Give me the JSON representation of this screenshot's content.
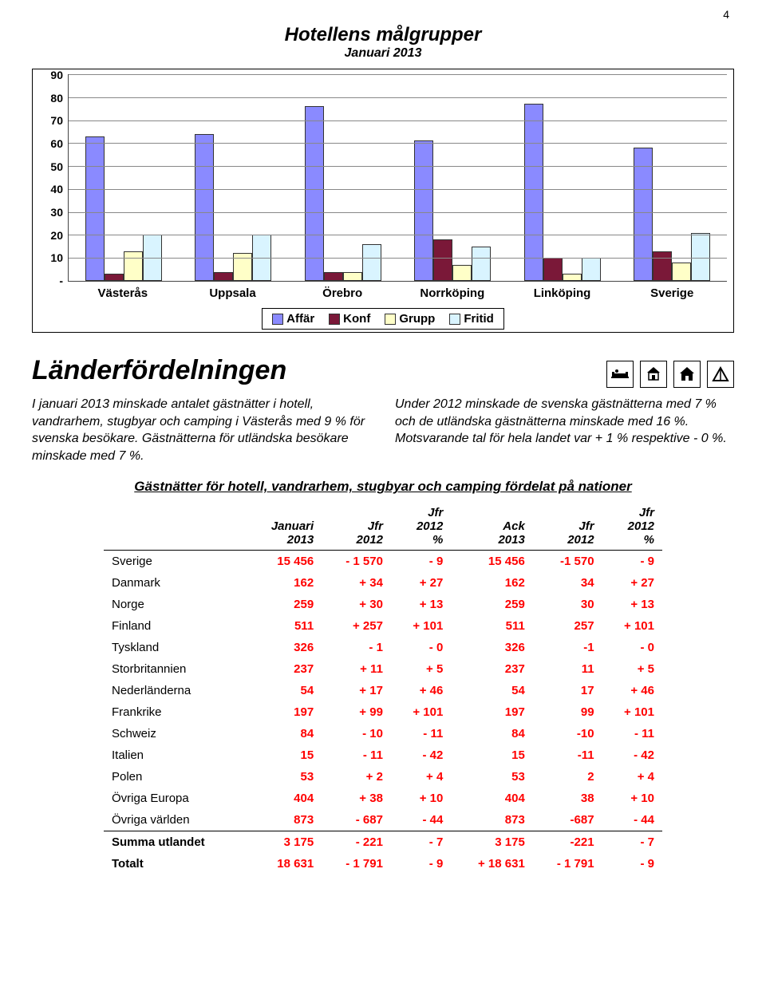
{
  "page_number": "4",
  "chart": {
    "type": "bar",
    "title": "Hotellens målgrupper",
    "subtitle": "Januari 2013",
    "ymax": 90,
    "ystep": 10,
    "ylabels": [
      "90",
      "80",
      "70",
      "60",
      "50",
      "40",
      "30",
      "20",
      "10",
      "-"
    ],
    "categories": [
      "Västerås",
      "Uppsala",
      "Örebro",
      "Norrköping",
      "Linköping",
      "Sverige"
    ],
    "series": [
      {
        "name": "Affär",
        "color": "#8a8aff",
        "values": [
          63,
          64,
          76,
          61,
          77,
          58
        ]
      },
      {
        "name": "Konf",
        "color": "#7a1838",
        "values": [
          3,
          4,
          4,
          18,
          10,
          13
        ]
      },
      {
        "name": "Grupp",
        "color": "#ffffc8",
        "values": [
          13,
          12,
          4,
          7,
          3,
          8
        ]
      },
      {
        "name": "Fritid",
        "color": "#d9f4ff",
        "values": [
          20,
          20,
          16,
          15,
          10,
          21
        ]
      }
    ],
    "grid_color": "#888888",
    "border_color": "#000000",
    "background_color": "#ffffff"
  },
  "section_heading": "Länderfördelningen",
  "icons": [
    "hotel-icon",
    "hostel-icon",
    "cabin-icon",
    "tent-icon"
  ],
  "col_left": "I januari 2013 minskade antalet gästnätter i hotell, vandrarhem, stugbyar och camping i Västerås med 9 % för svenska besökare. Gästnätterna för utländska besökare minskade med 7 %.",
  "col_right": "Under 2012 minskade de svenska gästnätterna med 7 % och de utländska gästnätterna minskade med 16 %. Motsvarande tal för hela landet var + 1 % respektive - 0 %.",
  "subheading": "Gästnätter för hotell, vandrarhem, stugbyar och camping fördelat på nationer",
  "table": {
    "headers": [
      "",
      "Januari\n2013",
      "Jfr\n2012",
      "Jfr\n2012\n%",
      "Ack\n2013",
      "Jfr\n2012",
      "Jfr\n2012\n%"
    ],
    "rows": [
      [
        "Sverige",
        "15 456",
        "- 1 570",
        "- 9",
        "15 456",
        "-1 570",
        "- 9"
      ],
      [
        "Danmark",
        "162",
        "+ 34",
        "+ 27",
        "162",
        "34",
        "+ 27"
      ],
      [
        "Norge",
        "259",
        "+ 30",
        "+ 13",
        "259",
        "30",
        "+ 13"
      ],
      [
        "Finland",
        "511",
        "+ 257",
        "+ 101",
        "511",
        "257",
        "+ 101"
      ],
      [
        "Tyskland",
        "326",
        "- 1",
        "- 0",
        "326",
        "-1",
        "- 0"
      ],
      [
        "Storbritannien",
        "237",
        "+ 11",
        "+ 5",
        "237",
        "11",
        "+ 5"
      ],
      [
        "Nederländerna",
        "54",
        "+ 17",
        "+ 46",
        "54",
        "17",
        "+ 46"
      ],
      [
        "Frankrike",
        "197",
        "+ 99",
        "+ 101",
        "197",
        "99",
        "+ 101"
      ],
      [
        "Schweiz",
        "84",
        "- 10",
        "- 11",
        "84",
        "-10",
        "- 11"
      ],
      [
        "Italien",
        "15",
        "- 11",
        "- 42",
        "15",
        "-11",
        "- 42"
      ],
      [
        "Polen",
        "53",
        "+ 2",
        "+ 4",
        "53",
        "2",
        "+ 4"
      ],
      [
        "Övriga Europa",
        "404",
        "+ 38",
        "+ 10",
        "404",
        "38",
        "+ 10"
      ],
      [
        "Övriga världen",
        "873",
        "- 687",
        "- 44",
        "873",
        "-687",
        "- 44"
      ]
    ],
    "summa": [
      "Summa utlandet",
      "3 175",
      "- 221",
      "- 7",
      "3 175",
      "-221",
      "- 7"
    ],
    "total": [
      "Totalt",
      "18 631",
      "- 1 791",
      "- 9",
      "+ 18 631",
      "- 1 791",
      "- 9"
    ]
  }
}
